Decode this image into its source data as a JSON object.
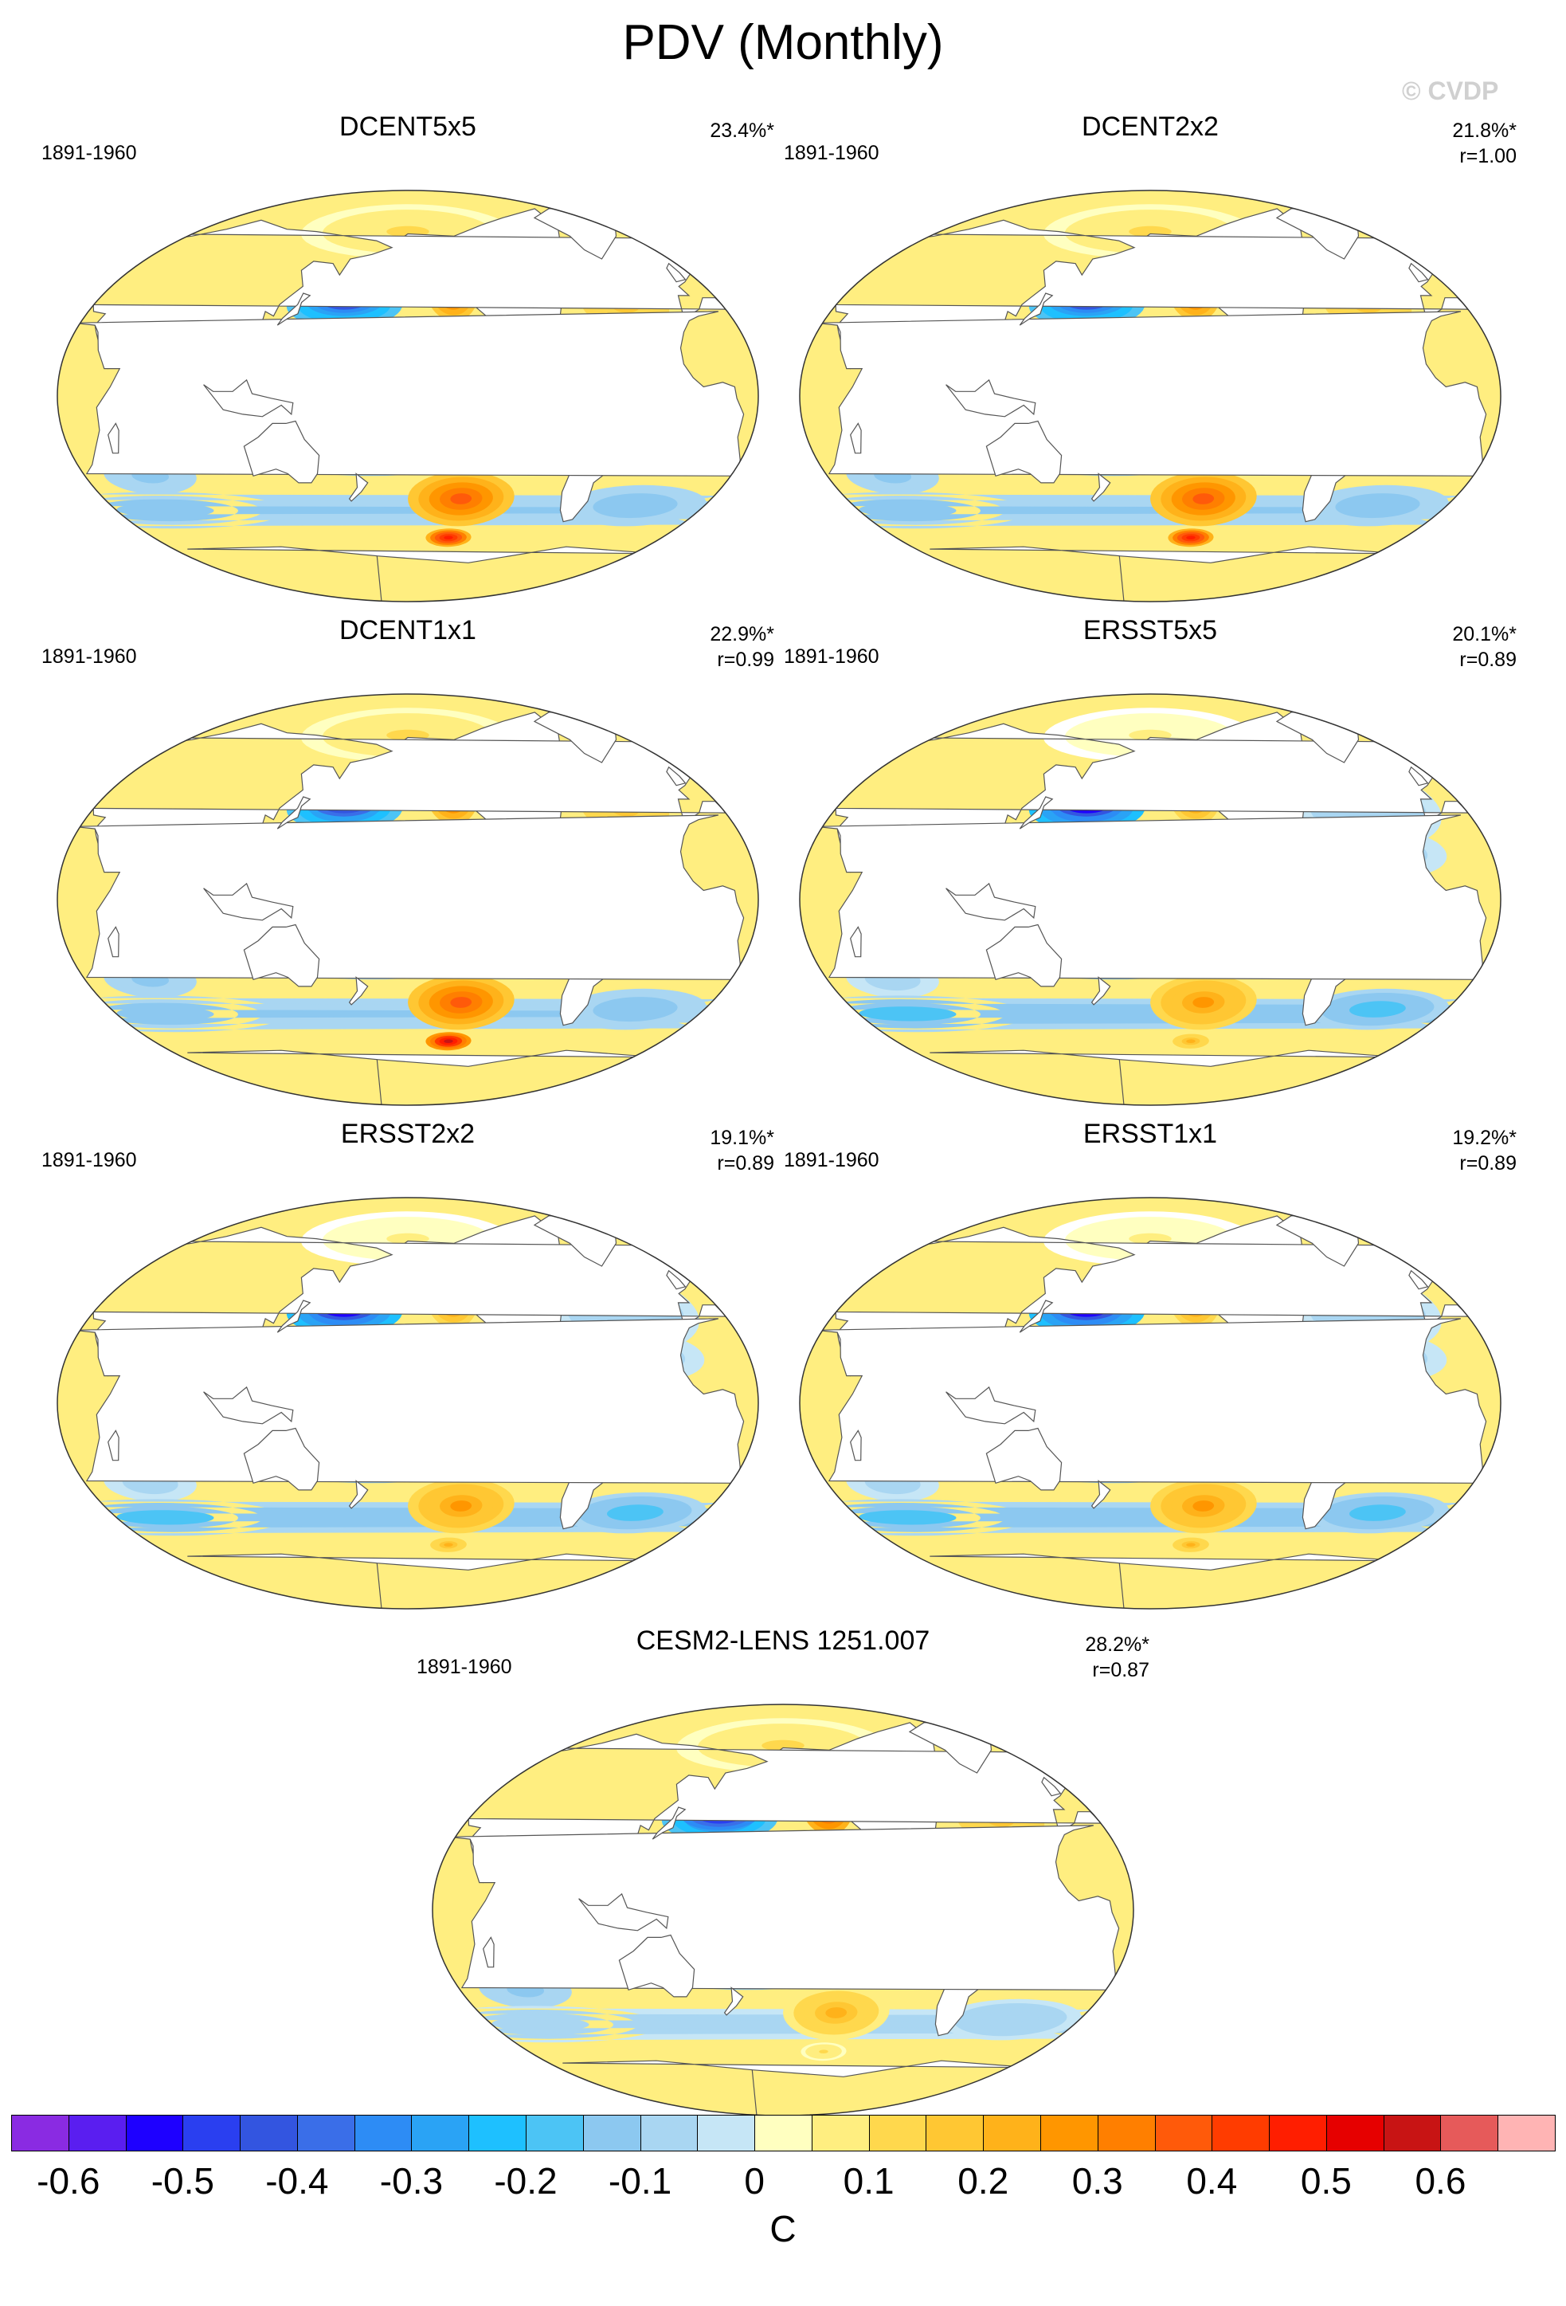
{
  "title": "PDV (Monthly)",
  "watermark": "© CVDP",
  "panels": [
    {
      "name": "DCENT5x5",
      "period": "1891-1960",
      "pct": "23.4%*",
      "r": "",
      "field": {
        "npx": -0.55,
        "nepx": 0.35,
        "tp": 0.45,
        "sp": -0.25,
        "spac": 0.35,
        "sp2": 0.5,
        "natl": 0.15,
        "io": 0.15,
        "so": -0.15,
        "arc": 0.1
      }
    },
    {
      "name": "DCENT2x2",
      "period": "1891-1960",
      "pct": "21.8%*",
      "r": "r=1.00",
      "field": {
        "npx": -0.55,
        "nepx": 0.35,
        "tp": 0.45,
        "sp": -0.25,
        "spac": 0.35,
        "sp2": 0.5,
        "natl": 0.15,
        "io": 0.15,
        "so": -0.15,
        "arc": 0.1
      }
    },
    {
      "name": "DCENT1x1",
      "period": "1891-1960",
      "pct": "22.9%*",
      "r": "r=0.99",
      "field": {
        "npx": -0.6,
        "nepx": 0.35,
        "tp": 0.45,
        "sp": -0.2,
        "spac": 0.35,
        "sp2": 0.55,
        "natl": 0.15,
        "io": 0.15,
        "so": -0.15,
        "arc": 0.1
      }
    },
    {
      "name": "ERSST5x5",
      "period": "1891-1960",
      "pct": "20.1%*",
      "r": "r=0.89",
      "field": {
        "npx": -0.7,
        "nepx": 0.3,
        "tp": 0.35,
        "sp": -0.25,
        "spac": 0.25,
        "sp2": 0.2,
        "natl": -0.1,
        "io": 0.1,
        "so": -0.2,
        "arc": 0.05
      }
    },
    {
      "name": "ERSST2x2",
      "period": "1891-1960",
      "pct": "19.1%*",
      "r": "r=0.89",
      "field": {
        "npx": -0.7,
        "nepx": 0.3,
        "tp": 0.35,
        "sp": -0.25,
        "spac": 0.25,
        "sp2": 0.2,
        "natl": -0.1,
        "io": 0.1,
        "so": -0.2,
        "arc": 0.05
      }
    },
    {
      "name": "ERSST1x1",
      "period": "1891-1960",
      "pct": "19.2%*",
      "r": "r=0.89",
      "field": {
        "npx": -0.7,
        "nepx": 0.3,
        "tp": 0.35,
        "sp": -0.25,
        "spac": 0.25,
        "sp2": 0.2,
        "natl": -0.1,
        "io": 0.1,
        "so": -0.2,
        "arc": 0.05
      }
    },
    {
      "name": "CESM2-LENS 1251.007",
      "period": "1891-1960",
      "pct": "28.2%*",
      "r": "r=0.87",
      "field": {
        "npx": -0.65,
        "nepx": 0.45,
        "tp": 0.5,
        "sp": -0.3,
        "spac": 0.2,
        "sp2": 0.1,
        "natl": 0.15,
        "io": 0.15,
        "so": -0.1,
        "arc": 0.1
      }
    }
  ],
  "colorbar": {
    "unit": "C",
    "colors": [
      "#8a2be2",
      "#5a1ef0",
      "#1e00ff",
      "#2a3ff0",
      "#3355e0",
      "#3a6ee8",
      "#2d8cf5",
      "#2aa3f5",
      "#1ec0ff",
      "#4cc4f5",
      "#8cc8f0",
      "#a9d6f2",
      "#c6e6f6",
      "#ffffc0",
      "#ffee80",
      "#ffd84d",
      "#ffc733",
      "#ffb21a",
      "#ff9600",
      "#ff7f00",
      "#ff5a0a",
      "#ff3c00",
      "#ff1e00",
      "#e60000",
      "#c81414",
      "#e65a5a",
      "#ffb4b4"
    ],
    "ticks": [
      "-0.6",
      "-0.5",
      "-0.4",
      "-0.3",
      "-0.2",
      "-0.1",
      "0",
      "0.1",
      "0.2",
      "0.3",
      "0.4",
      "0.5",
      "0.6"
    ]
  }
}
